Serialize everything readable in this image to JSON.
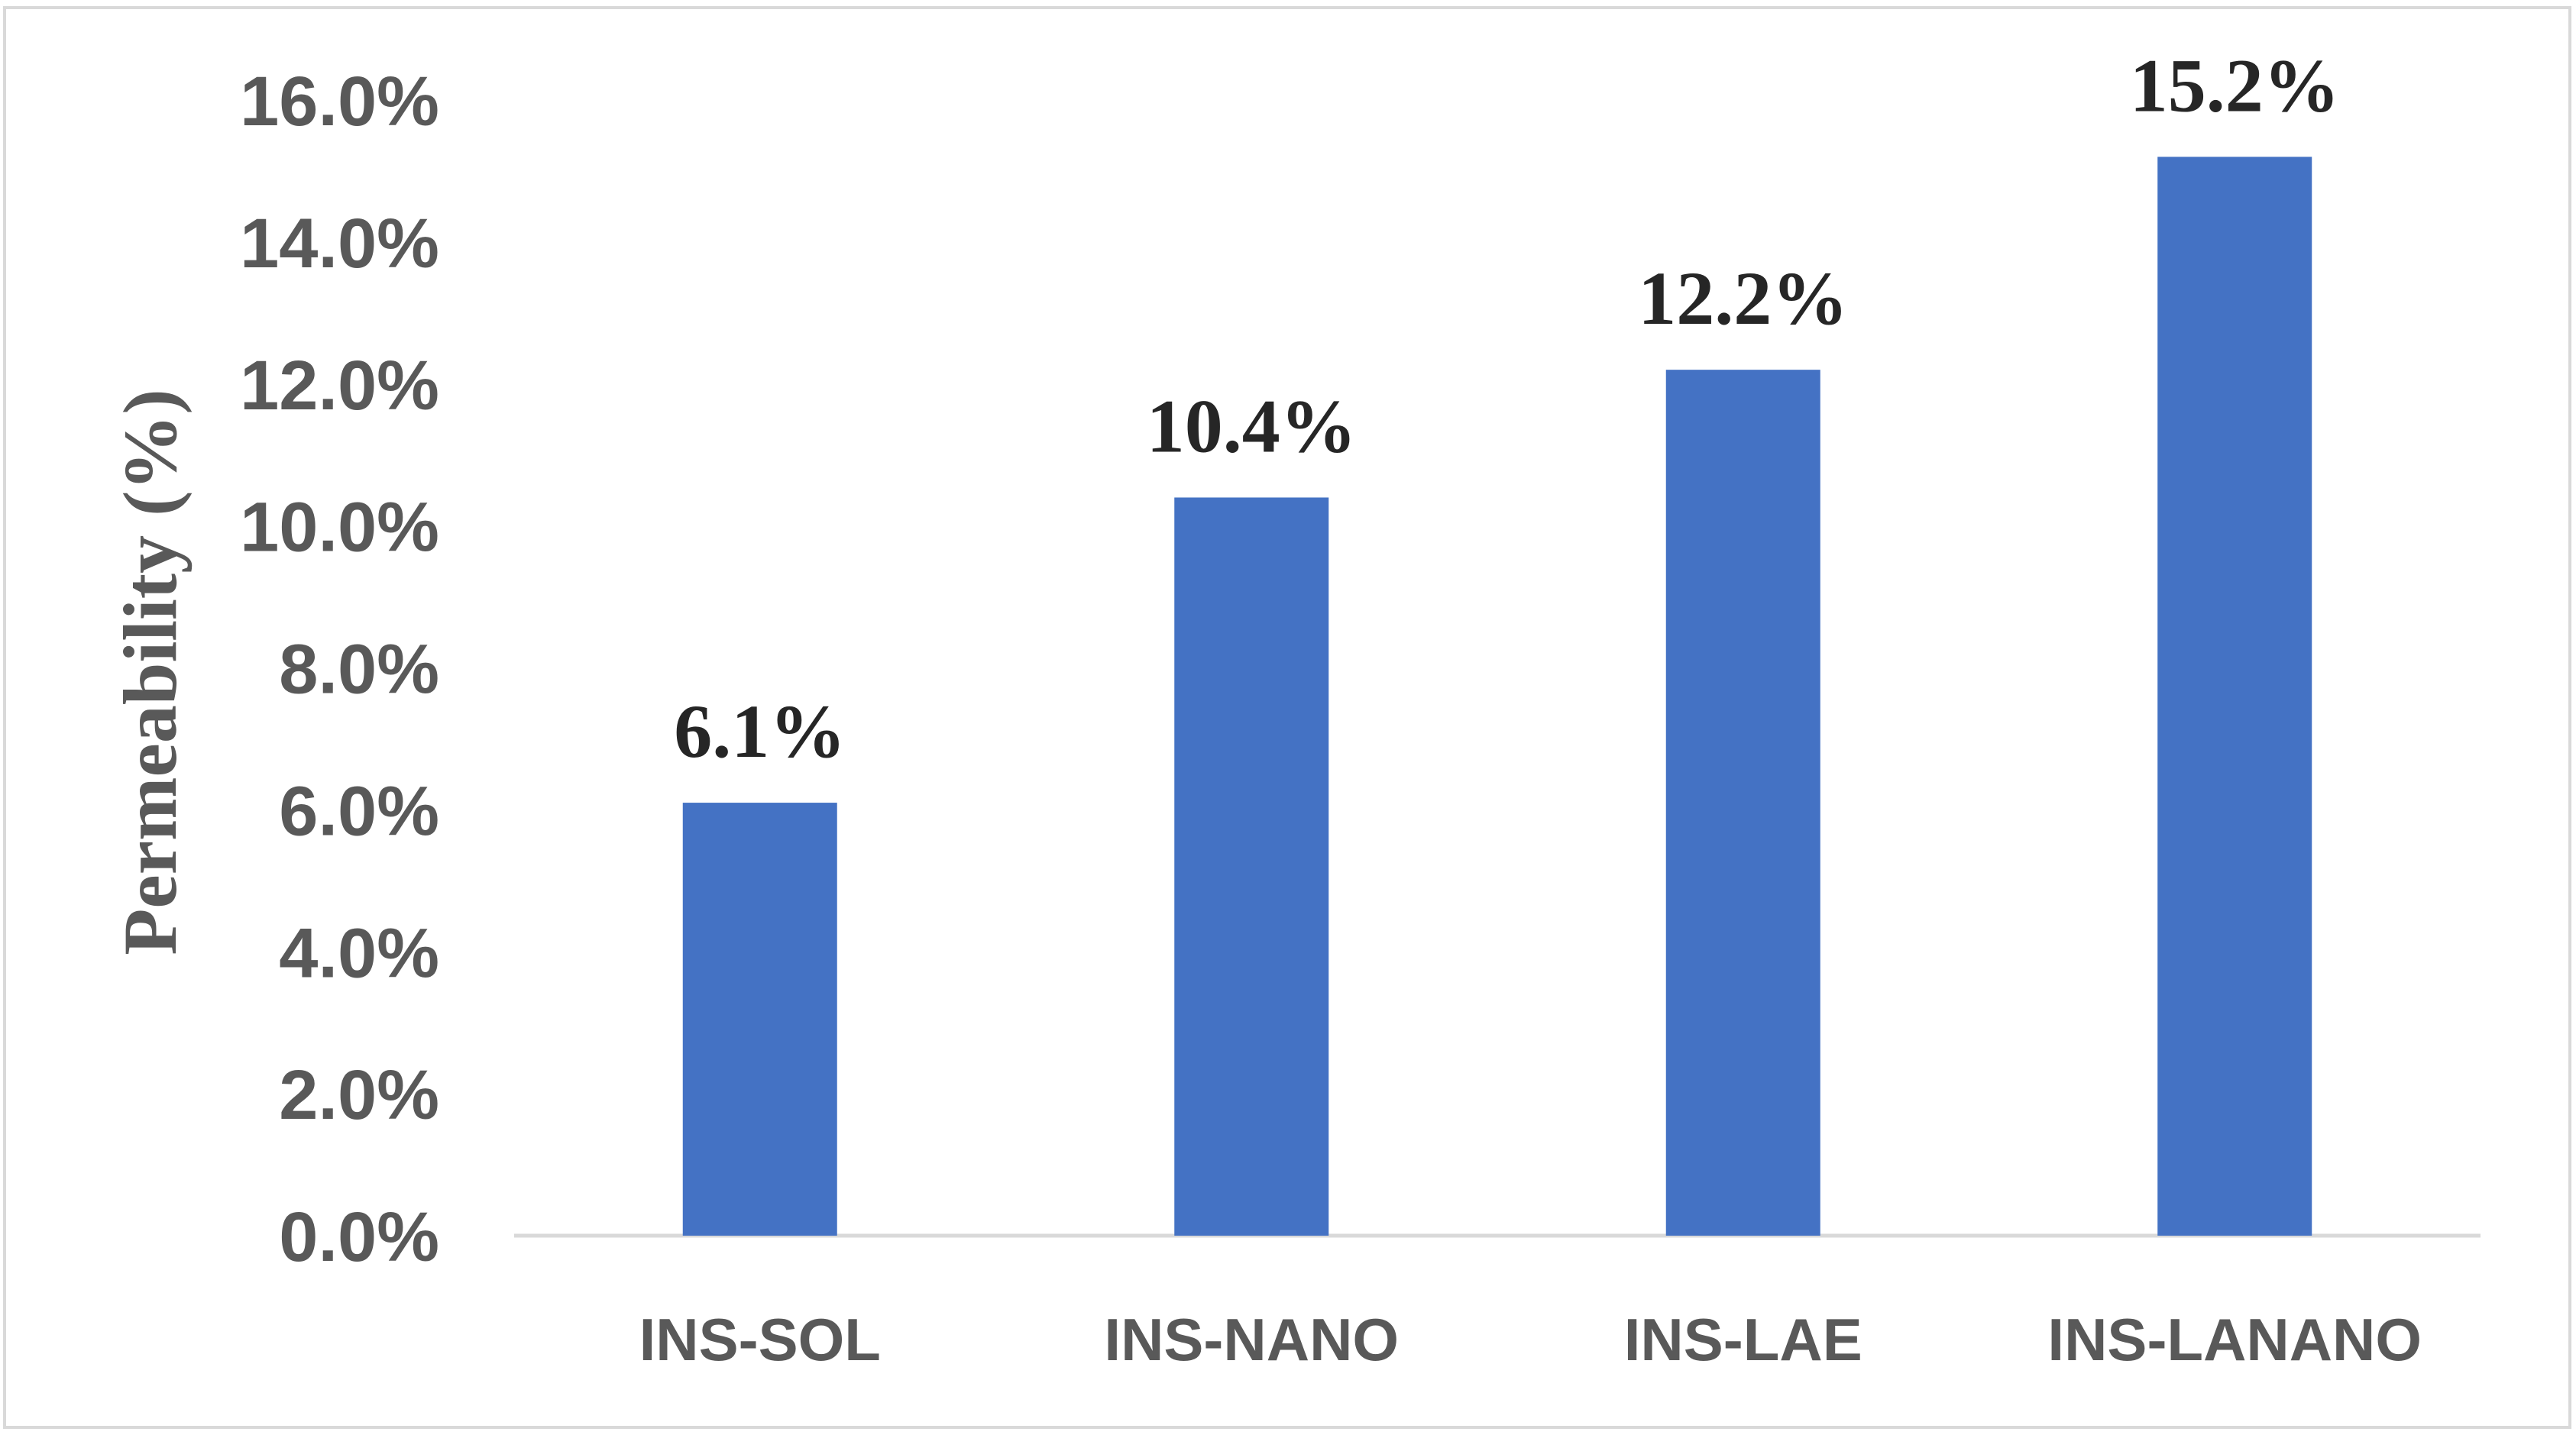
{
  "chart_data": {
    "type": "bar",
    "categories": [
      "INS-SOL",
      "INS-NANO",
      "INS-LAE",
      "INS-LANANO"
    ],
    "values": [
      6.1,
      10.4,
      12.2,
      15.2
    ],
    "data_labels": [
      "6.1%",
      "10.4%",
      "12.2%",
      "15.2%"
    ],
    "title": "",
    "xlabel": "",
    "ylabel": "Permeability (%)",
    "ylim": [
      0,
      16
    ],
    "yticks": [
      0,
      2,
      4,
      6,
      8,
      10,
      12,
      14,
      16
    ],
    "ytick_labels": [
      "0.0%",
      "2.0%",
      "4.0%",
      "6.0%",
      "8.0%",
      "10.0%",
      "12.0%",
      "14.0%",
      "16.0%"
    ],
    "grid": false,
    "legend": "none",
    "bar_color": "#4472c4",
    "axis_color": "#d9d9d9"
  }
}
